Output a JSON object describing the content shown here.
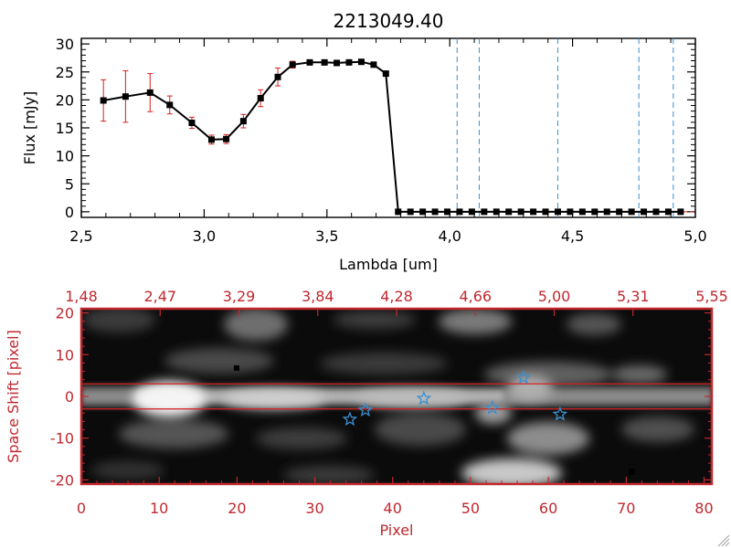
{
  "chart_data": [
    {
      "type": "line",
      "title": "2213049.40",
      "xlabel": "Lambda [um]",
      "ylabel": "Flux [mJy]",
      "xlim": [
        2.5,
        5.0
      ],
      "ylim": [
        -1,
        31
      ],
      "xticks": [
        "2.5",
        "3.0",
        "3.5",
        "4.0",
        "4.5",
        "5.0"
      ],
      "yticks": [
        "0",
        "5",
        "10",
        "15",
        "20",
        "25",
        "30"
      ],
      "series": [
        {
          "name": "flux",
          "x": [
            2.59,
            2.68,
            2.78,
            2.86,
            2.95,
            3.03,
            3.09,
            3.16,
            3.23,
            3.3,
            3.36,
            3.43,
            3.49,
            3.54,
            3.59,
            3.64,
            3.69,
            3.74,
            3.79,
            3.84,
            3.89,
            3.94,
            3.99,
            4.04,
            4.09,
            4.14,
            4.19,
            4.24,
            4.29,
            4.34,
            4.39,
            4.44,
            4.49,
            4.54,
            4.59,
            4.64,
            4.69,
            4.74,
            4.79,
            4.84,
            4.89,
            4.94
          ],
          "y": [
            19.9,
            20.6,
            21.3,
            19.1,
            15.9,
            12.9,
            13.0,
            16.2,
            20.3,
            24.1,
            26.3,
            26.7,
            26.7,
            26.6,
            26.7,
            26.8,
            26.3,
            24.7,
            0,
            0,
            0,
            0,
            0,
            0,
            0,
            0,
            0,
            0,
            0,
            0,
            0,
            0,
            0,
            0,
            0,
            0,
            0,
            0,
            0,
            0,
            0,
            0
          ],
          "yerr": [
            3.7,
            4.6,
            3.4,
            1.6,
            1.0,
            0.8,
            0.8,
            1.2,
            1.5,
            1.6,
            0.6,
            0.4,
            0.3,
            0.3,
            0.3,
            0.3,
            0.3,
            0.4,
            0,
            0,
            0,
            0,
            0,
            0,
            0,
            0,
            0,
            0,
            0,
            0,
            0,
            0,
            0,
            0,
            0,
            0,
            0,
            0,
            0,
            0,
            0,
            0
          ]
        }
      ],
      "vlines": [
        4.03,
        4.12,
        4.44,
        4.77,
        4.91
      ],
      "colors": {
        "line": "#000000",
        "marker": "#000000",
        "errorbar": "#d42020",
        "vline": "#3a8fd0",
        "hline": "#d42020"
      }
    },
    {
      "type": "heatmap",
      "xlabel": "Pixel",
      "ylabel": "Space Shift [pixel]",
      "xlim": [
        0,
        81
      ],
      "ylim": [
        -21,
        21
      ],
      "xticks": [
        "0",
        "10",
        "20",
        "30",
        "40",
        "50",
        "60",
        "70",
        "80"
      ],
      "yticks": [
        "-20",
        "-10",
        "0",
        "10",
        "20"
      ],
      "top_axis_ticks": [
        "1.48",
        "2.47",
        "3.29",
        "3.84",
        "4.28",
        "4.66",
        "5.00",
        "5.31",
        "5.55"
      ],
      "trace_lines_y": [
        3,
        -3
      ],
      "markers": [
        {
          "x": 34.5,
          "y": -5.5
        },
        {
          "x": 36.5,
          "y": -3.3
        },
        {
          "x": 44.0,
          "y": -0.5
        },
        {
          "x": 52.8,
          "y": -2.8
        },
        {
          "x": 56.8,
          "y": 4.5
        },
        {
          "x": 61.5,
          "y": -4.3
        }
      ],
      "colors": {
        "axis": "#c0282e",
        "trace": "#d42020",
        "marker": "#3a8fd0"
      }
    }
  ]
}
